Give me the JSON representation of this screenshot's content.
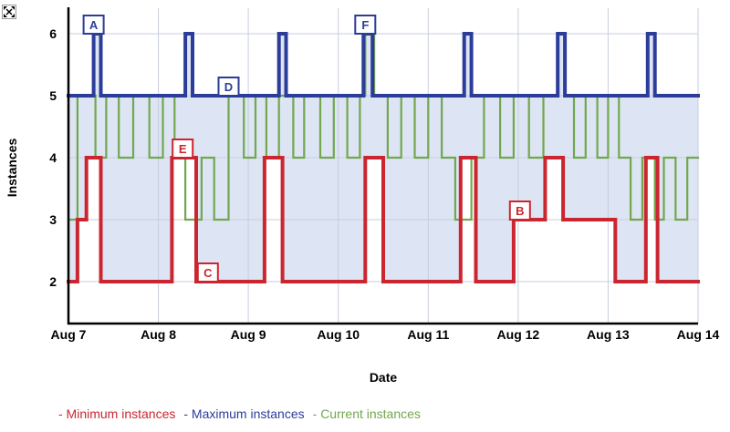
{
  "icons": {
    "expand": "expand-arrows"
  },
  "chart_data": {
    "type": "line",
    "subtype": "step",
    "title": "",
    "xlabel": "Date",
    "ylabel": "Instances",
    "x_tick_labels": [
      "Aug 7",
      "Aug 8",
      "Aug 9",
      "Aug 10",
      "Aug 11",
      "Aug 12",
      "Aug 13",
      "Aug 14"
    ],
    "y_tick_labels": [
      "2",
      "3",
      "4",
      "5",
      "6"
    ],
    "x_range_days_from_first_tick": [
      0,
      7
    ],
    "ylim": [
      2,
      6
    ],
    "grid": true,
    "band_fill_color": "#dde4f3",
    "grid_color": "#c6cede",
    "axis_color": "#000000",
    "series": [
      {
        "name": "Minimum instances",
        "color": "#cb2630",
        "line_width": 4,
        "steps": [
          [
            0,
            2
          ],
          [
            0.1,
            3
          ],
          [
            0.2,
            4
          ],
          [
            0.36,
            2
          ],
          [
            1.15,
            4
          ],
          [
            1.42,
            2
          ],
          [
            2.18,
            4
          ],
          [
            2.38,
            2
          ],
          [
            3.3,
            4
          ],
          [
            3.5,
            2
          ],
          [
            4.36,
            4
          ],
          [
            4.53,
            2
          ],
          [
            4.95,
            3
          ],
          [
            5.3,
            4
          ],
          [
            5.5,
            3
          ],
          [
            6.08,
            2
          ],
          [
            6.42,
            4
          ],
          [
            6.55,
            2
          ]
        ]
      },
      {
        "name": "Maximum instances",
        "color": "#2b3d98",
        "line_width": 4,
        "steps": [
          [
            0,
            5
          ],
          [
            0.28,
            6
          ],
          [
            0.36,
            5
          ],
          [
            1.3,
            6
          ],
          [
            1.38,
            5
          ],
          [
            2.34,
            6
          ],
          [
            2.42,
            5
          ],
          [
            3.28,
            6
          ],
          [
            3.38,
            5
          ],
          [
            4.4,
            6
          ],
          [
            4.48,
            5
          ],
          [
            5.44,
            6
          ],
          [
            5.52,
            5
          ],
          [
            6.44,
            6
          ],
          [
            6.52,
            5
          ]
        ]
      },
      {
        "name": "Current instances",
        "color": "#72a74e",
        "line_width": 2.2,
        "steps": [
          [
            0,
            3
          ],
          [
            0.1,
            5
          ],
          [
            0.3,
            4
          ],
          [
            0.42,
            5
          ],
          [
            0.56,
            4
          ],
          [
            0.72,
            5
          ],
          [
            0.9,
            4
          ],
          [
            1.05,
            5
          ],
          [
            1.18,
            4
          ],
          [
            1.3,
            3
          ],
          [
            1.48,
            4
          ],
          [
            1.62,
            3
          ],
          [
            1.78,
            5
          ],
          [
            1.95,
            4
          ],
          [
            2.08,
            5
          ],
          [
            2.2,
            4
          ],
          [
            2.34,
            5
          ],
          [
            2.5,
            4
          ],
          [
            2.62,
            5
          ],
          [
            2.8,
            4
          ],
          [
            2.95,
            5
          ],
          [
            3.1,
            4
          ],
          [
            3.24,
            5
          ],
          [
            3.3,
            6
          ],
          [
            3.4,
            5
          ],
          [
            3.55,
            4
          ],
          [
            3.7,
            5
          ],
          [
            3.85,
            4
          ],
          [
            4.0,
            5
          ],
          [
            4.15,
            4
          ],
          [
            4.3,
            3
          ],
          [
            4.48,
            4
          ],
          [
            4.62,
            5
          ],
          [
            4.8,
            4
          ],
          [
            4.95,
            5
          ],
          [
            5.12,
            4
          ],
          [
            5.28,
            5
          ],
          [
            5.44,
            6
          ],
          [
            5.52,
            5
          ],
          [
            5.62,
            4
          ],
          [
            5.75,
            5
          ],
          [
            5.88,
            4
          ],
          [
            6.0,
            5
          ],
          [
            6.12,
            4
          ],
          [
            6.25,
            3
          ],
          [
            6.38,
            4
          ],
          [
            6.52,
            3
          ],
          [
            6.62,
            4
          ],
          [
            6.75,
            3
          ],
          [
            6.88,
            4
          ]
        ]
      }
    ],
    "annotations": [
      {
        "label": "A",
        "series": "Maximum instances",
        "color": "#2b3d98",
        "x": 0.28,
        "y": 6
      },
      {
        "label": "B",
        "series": "Minimum instances",
        "color": "#cb2630",
        "x": 5.02,
        "y": 3
      },
      {
        "label": "C",
        "series": "Minimum instances",
        "color": "#cb2630",
        "x": 1.55,
        "y": 2
      },
      {
        "label": "D",
        "series": "Maximum instances",
        "color": "#2b3d98",
        "x": 1.78,
        "y": 5
      },
      {
        "label": "E",
        "series": "Minimum instances",
        "color": "#cb2630",
        "x": 1.27,
        "y": 4
      },
      {
        "label": "F",
        "series": "Maximum instances",
        "color": "#2b3d98",
        "x": 3.3,
        "y": 6
      }
    ],
    "legend": {
      "position": "bottom-left",
      "items": [
        {
          "label": "- Minimum instances",
          "color": "#cb2630"
        },
        {
          "label": "- Maximum instances",
          "color": "#2b3d98"
        },
        {
          "label": "- Current instances",
          "color": "#72a74e"
        }
      ]
    }
  }
}
